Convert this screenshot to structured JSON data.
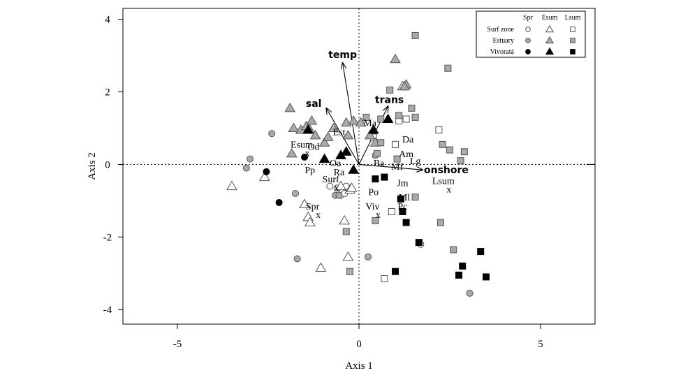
{
  "chart_data": {
    "type": "scatter",
    "title": "",
    "xlabel": "Axis 1",
    "ylabel": "Axis 2",
    "xlim": [
      -6.5,
      6.5
    ],
    "ylim": [
      -4.4,
      4.3
    ],
    "xticks": [
      "-5",
      "0",
      "5"
    ],
    "yticks": [
      "4",
      "2",
      "0",
      "-2",
      "-4"
    ],
    "reference_lines": "dotted lines at x=0 and y=0",
    "legend": {
      "placement": "top-right",
      "columns": [
        "Spr",
        "Esum",
        "Lsum"
      ],
      "rows": [
        "Surf zone",
        "Estuary",
        "Vivoratá"
      ],
      "fills": {
        "Surf zone": "#ffffff",
        "Estuary": "#aaaaaa",
        "Vivoratá": "#000000"
      },
      "shapes": {
        "Spr": "circle",
        "Esum": "triangle",
        "Lsum": "square"
      }
    },
    "env_vectors": [
      {
        "label": "temp",
        "x": -0.45,
        "y": 2.8
      },
      {
        "label": "sal",
        "x": -0.9,
        "y": 1.55
      },
      {
        "label": "trans",
        "x": 0.8,
        "y": 1.6
      },
      {
        "label": "onshore",
        "x": 1.75,
        "y": -0.15
      }
    ],
    "species_labels": [
      {
        "label": "Ma",
        "x": 0.3,
        "y": 1.15
      },
      {
        "label": "Est",
        "x": -0.55,
        "y": 0.9
      },
      {
        "label": "Od",
        "x": -1.25,
        "y": 0.5
      },
      {
        "label": "Da",
        "x": 1.35,
        "y": 0.7
      },
      {
        "label": "Am",
        "x": 1.3,
        "y": 0.3
      },
      {
        "label": "Lg",
        "x": 1.55,
        "y": 0.1
      },
      {
        "label": "Oa",
        "x": -0.65,
        "y": 0.05
      },
      {
        "label": "Ba",
        "x": 0.55,
        "y": 0.05
      },
      {
        "label": "Mf",
        "x": 1.05,
        "y": -0.05
      },
      {
        "label": "Pp",
        "x": -1.35,
        "y": -0.15
      },
      {
        "label": "Ra",
        "x": -0.55,
        "y": -0.2
      },
      {
        "label": "Jm",
        "x": 1.2,
        "y": -0.5
      },
      {
        "label": "Po",
        "x": 0.4,
        "y": -0.75
      },
      {
        "label": "Ml",
        "x": 1.25,
        "y": -0.9
      },
      {
        "label": "Pc",
        "x": 1.2,
        "y": -1.15
      }
    ],
    "centroids": [
      {
        "label": "Esum",
        "x": -1.5,
        "y": 0.4
      },
      {
        "label": "Surf",
        "x": -0.7,
        "y": -0.55
      },
      {
        "label": "Spr",
        "x": -1.2,
        "y": -1.3
      },
      {
        "label": "Viv",
        "x": 0.45,
        "y": -1.3
      },
      {
        "label": "Lsum",
        "x": 2.4,
        "y": -0.6
      }
    ],
    "series": [
      {
        "name": "Surf zone · Spr",
        "shape": "circle",
        "fill": "#ffffff",
        "points": [
          [
            -0.8,
            -0.6
          ],
          [
            -0.6,
            -0.65
          ],
          [
            -0.45,
            -0.75
          ],
          [
            -0.35,
            -0.6
          ],
          [
            -0.5,
            -0.85
          ],
          [
            -0.4,
            -0.8
          ],
          [
            1.7,
            -2.2
          ]
        ]
      },
      {
        "name": "Surf zone · Esum",
        "shape": "triangle",
        "fill": "#ffffff",
        "points": [
          [
            -3.5,
            -0.6
          ],
          [
            -2.6,
            -0.35
          ],
          [
            -1.5,
            -1.1
          ],
          [
            -1.4,
            -1.45
          ],
          [
            -1.35,
            -1.6
          ],
          [
            -0.4,
            -1.55
          ],
          [
            -0.3,
            -2.55
          ],
          [
            -1.05,
            -2.85
          ],
          [
            -0.25,
            -0.7
          ],
          [
            -0.5,
            -0.6
          ],
          [
            -0.2,
            -0.65
          ],
          [
            1.2,
            2.15
          ]
        ]
      },
      {
        "name": "Surf zone · Lsum",
        "shape": "square",
        "fill": "#ffffff",
        "points": [
          [
            2.2,
            0.95
          ],
          [
            1.1,
            1.2
          ],
          [
            1.3,
            1.25
          ],
          [
            0.4,
            0.75
          ],
          [
            1.0,
            0.55
          ],
          [
            0.9,
            -1.3
          ],
          [
            0.7,
            -3.15
          ]
        ]
      },
      {
        "name": "Estuary · Spr",
        "shape": "circle",
        "fill": "#aaaaaa",
        "points": [
          [
            -3.0,
            0.15
          ],
          [
            -3.1,
            -0.1
          ],
          [
            -2.4,
            0.85
          ],
          [
            -1.75,
            -0.8
          ],
          [
            -0.65,
            -0.85
          ],
          [
            -0.55,
            -0.85
          ],
          [
            -1.7,
            -2.6
          ],
          [
            0.25,
            -2.55
          ],
          [
            3.05,
            -3.55
          ],
          [
            0.45,
            0.25
          ]
        ]
      },
      {
        "name": "Estuary · Esum",
        "shape": "triangle",
        "fill": "#aaaaaa",
        "points": [
          [
            -1.9,
            1.55
          ],
          [
            -1.8,
            1.0
          ],
          [
            -1.6,
            0.95
          ],
          [
            -1.45,
            1.05
          ],
          [
            -1.35,
            0.95
          ],
          [
            -1.3,
            1.2
          ],
          [
            -1.2,
            0.8
          ],
          [
            -0.95,
            0.6
          ],
          [
            -0.85,
            0.75
          ],
          [
            -0.7,
            1.0
          ],
          [
            -0.35,
            1.15
          ],
          [
            -0.15,
            1.2
          ],
          [
            0.05,
            1.15
          ],
          [
            -0.3,
            0.8
          ],
          [
            -1.85,
            0.3
          ],
          [
            1.0,
            2.9
          ],
          [
            1.3,
            2.2
          ],
          [
            1.25,
            2.15
          ],
          [
            0.3,
            0.8
          ],
          [
            0.45,
            0.6
          ]
        ]
      },
      {
        "name": "Estuary · Lsum",
        "shape": "square",
        "fill": "#aaaaaa",
        "points": [
          [
            1.55,
            3.55
          ],
          [
            2.45,
            2.65
          ],
          [
            0.85,
            2.05
          ],
          [
            0.2,
            1.3
          ],
          [
            0.6,
            1.25
          ],
          [
            1.1,
            1.35
          ],
          [
            1.45,
            1.55
          ],
          [
            1.55,
            1.3
          ],
          [
            0.6,
            0.6
          ],
          [
            2.3,
            0.55
          ],
          [
            2.5,
            0.4
          ],
          [
            2.9,
            0.35
          ],
          [
            2.8,
            0.1
          ],
          [
            0.5,
            0.3
          ],
          [
            1.05,
            0.15
          ],
          [
            -0.35,
            -1.85
          ],
          [
            0.45,
            -1.55
          ],
          [
            1.55,
            -0.9
          ],
          [
            2.25,
            -1.6
          ],
          [
            2.6,
            -2.35
          ],
          [
            -0.25,
            -2.95
          ]
        ]
      },
      {
        "name": "Vivoratá · Spr",
        "shape": "circle",
        "fill": "#000000",
        "points": [
          [
            -2.55,
            -0.2
          ],
          [
            -2.2,
            -1.05
          ],
          [
            -1.5,
            0.2
          ]
        ]
      },
      {
        "name": "Vivoratá · Esum",
        "shape": "triangle",
        "fill": "#000000",
        "points": [
          [
            -1.4,
            0.95
          ],
          [
            -0.95,
            0.15
          ],
          [
            -0.35,
            0.35
          ],
          [
            -0.5,
            0.25
          ],
          [
            -0.15,
            -0.15
          ],
          [
            0.4,
            0.95
          ],
          [
            0.8,
            1.25
          ]
        ]
      },
      {
        "name": "Vivoratá · Lsum",
        "shape": "square",
        "fill": "#000000",
        "points": [
          [
            0.45,
            -0.4
          ],
          [
            0.7,
            -0.35
          ],
          [
            1.15,
            -0.95
          ],
          [
            1.2,
            -1.3
          ],
          [
            1.3,
            -1.6
          ],
          [
            1.65,
            -2.15
          ],
          [
            1.0,
            -2.95
          ],
          [
            2.85,
            -2.8
          ],
          [
            2.75,
            -3.05
          ],
          [
            3.35,
            -2.4
          ],
          [
            3.5,
            -3.1
          ]
        ]
      }
    ]
  }
}
